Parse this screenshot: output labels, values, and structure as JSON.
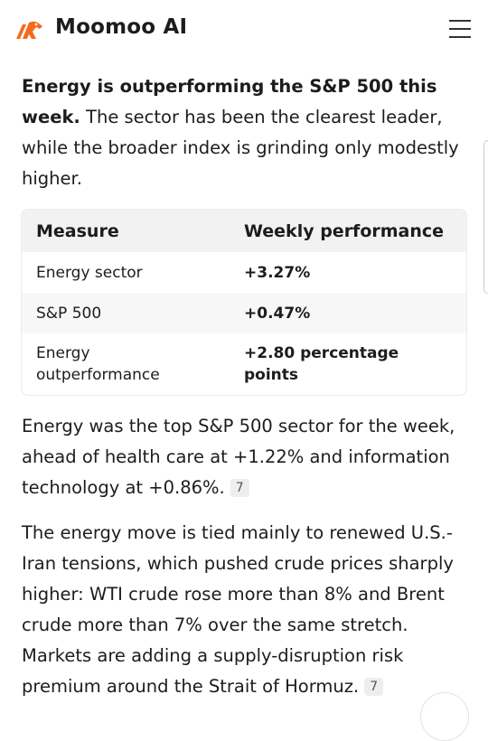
{
  "header": {
    "brand": "Moomoo AI"
  },
  "intro": {
    "bold": "Energy is outperforming the S&P 500 this week.",
    "text": "The sector has been the clearest leader, while the broader index is grinding only modestly higher."
  },
  "table": {
    "headers": [
      "Measure",
      "Weekly performance"
    ],
    "rows": [
      [
        "Energy sector",
        "+3.27%"
      ],
      [
        "S&P 500",
        "+0.47%"
      ],
      [
        "Energy outperformance",
        "+2.80 percentage points"
      ]
    ]
  },
  "paragraphs": [
    {
      "text": "Energy was the top S&P 500 sector for the week, ahead of health care at +1.22% and information technology at +0.86%.",
      "citation": "7"
    },
    {
      "text": "The energy move is tied mainly to renewed U.S.-Iran tensions, which pushed crude prices sharply higher: WTI crude rose more than 8% and Brent crude more than 7% over the same stretch. Markets are adding a supply-disruption risk premium around the Strait of Hormuz.",
      "citation": "7"
    }
  ]
}
